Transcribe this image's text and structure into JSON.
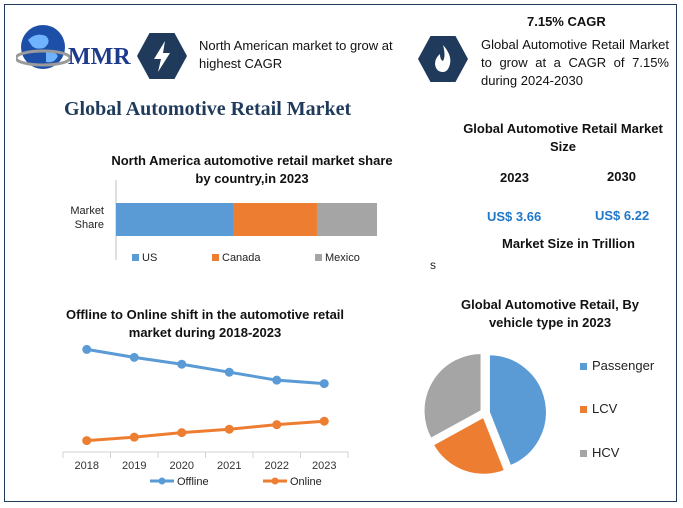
{
  "brand": {
    "name": "MMR"
  },
  "header": {
    "cagr_title": "7.15% CAGR",
    "na_text": "North American market to grow at highest CAGR",
    "global_text": "Global Automotive Retail Market to grow at a CAGR of 7.15% during 2024-2030"
  },
  "main_title": "Global Automotive Retail Market",
  "market_size": {
    "title": "Global Automotive Retail Market Size",
    "year1": "2023",
    "year2": "2030",
    "value1": "US$ 3.66",
    "value2": "US$ 6.22",
    "unit": "Market Size in Trillion",
    "stray": "s"
  },
  "colors": {
    "blue": "#5b9bd5",
    "orange": "#ed7d31",
    "gray": "#a5a5a5",
    "navy": "#1f3a5a"
  },
  "icons": {
    "lightning": "lightning-icon",
    "flame": "flame-icon",
    "globe": "globe-icon"
  },
  "chart_data": [
    {
      "type": "bar",
      "orientation": "horizontal-stacked",
      "title": "North America automotive retail market share by country,in 2023",
      "categories": [
        "Market Share"
      ],
      "series": [
        {
          "name": "US",
          "values": [
            45
          ]
        },
        {
          "name": "Canada",
          "values": [
            32
          ]
        },
        {
          "name": "Mexico",
          "values": [
            23
          ]
        }
      ],
      "legend": "bottom"
    },
    {
      "type": "line",
      "title": "Offline to Online shift in the automotive retail market during 2018-2023",
      "x": [
        "2018",
        "2019",
        "2020",
        "2021",
        "2022",
        "2023"
      ],
      "series": [
        {
          "name": "Offline",
          "values": [
            90,
            83,
            77,
            70,
            63,
            60
          ]
        },
        {
          "name": "Online",
          "values": [
            10,
            13,
            17,
            20,
            24,
            27
          ]
        }
      ],
      "ylim": [
        0,
        100
      ],
      "legend": "bottom"
    },
    {
      "type": "pie",
      "title": "Global Automotive Retail, By vehicle type in 2023",
      "categories": [
        "Passenger",
        "LCV",
        "HCV"
      ],
      "values": [
        44,
        23,
        33
      ],
      "legend": "right"
    }
  ]
}
